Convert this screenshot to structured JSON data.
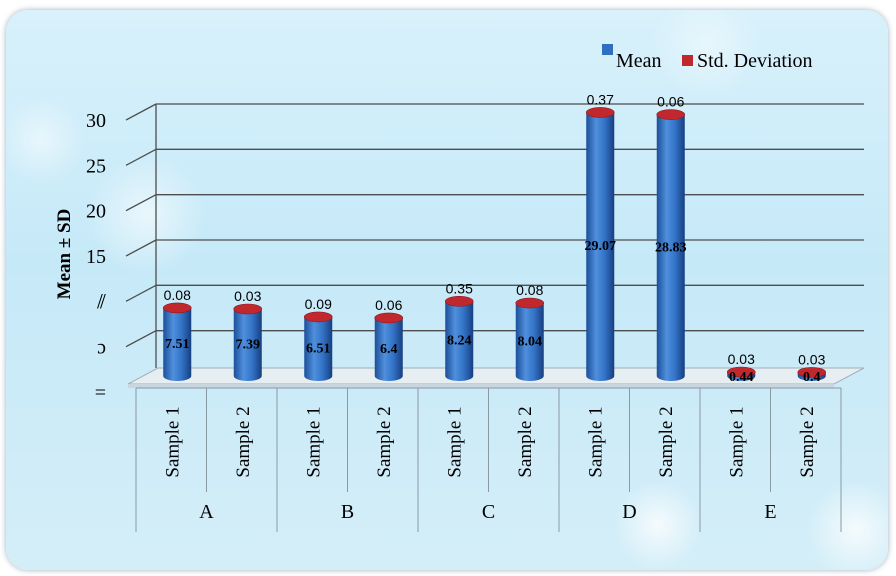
{
  "chart_data": {
    "type": "bar",
    "ylabel": "Mean ± SD",
    "ylim": [
      0,
      30
    ],
    "yticks": [
      0,
      5,
      10,
      15,
      20,
      25,
      30
    ],
    "ytick_labels": [
      "=",
      "ɔ",
      "⫽",
      "15",
      "20",
      "25",
      "30"
    ],
    "groups": [
      "A",
      "B",
      "C",
      "D",
      "E"
    ],
    "categories": [
      "Sample 1",
      "Sample 2",
      "Sample 1",
      "Sample 2",
      "Sample 1",
      "Sample 2",
      "Sample 1",
      "Sample 2",
      "Sample 1",
      "Sample 2"
    ],
    "series": [
      {
        "name": "Mean",
        "color": "#2e6fc0",
        "values": [
          7.51,
          7.39,
          6.51,
          6.4,
          8.24,
          8.04,
          29.07,
          28.83,
          0.44,
          0.4
        ]
      },
      {
        "name": "Std. Deviation",
        "color": "#c0282d",
        "values": [
          0.08,
          0.03,
          0.09,
          0.06,
          0.35,
          0.08,
          0.37,
          0.06,
          0.03,
          0.03
        ]
      }
    ],
    "value_labels": {
      "mean": [
        "7.51",
        "7.39",
        "6.51",
        "6.4",
        "8.24",
        "8.04",
        "29.07",
        "28.83",
        "0.44",
        "0.4"
      ],
      "sd": [
        "0.08",
        "0.03",
        "0.09",
        "0.06",
        "0.35",
        "0.08",
        "0.37",
        "0.06",
        "0.03",
        "0.03"
      ]
    },
    "grid": true,
    "legend": "top-right"
  }
}
